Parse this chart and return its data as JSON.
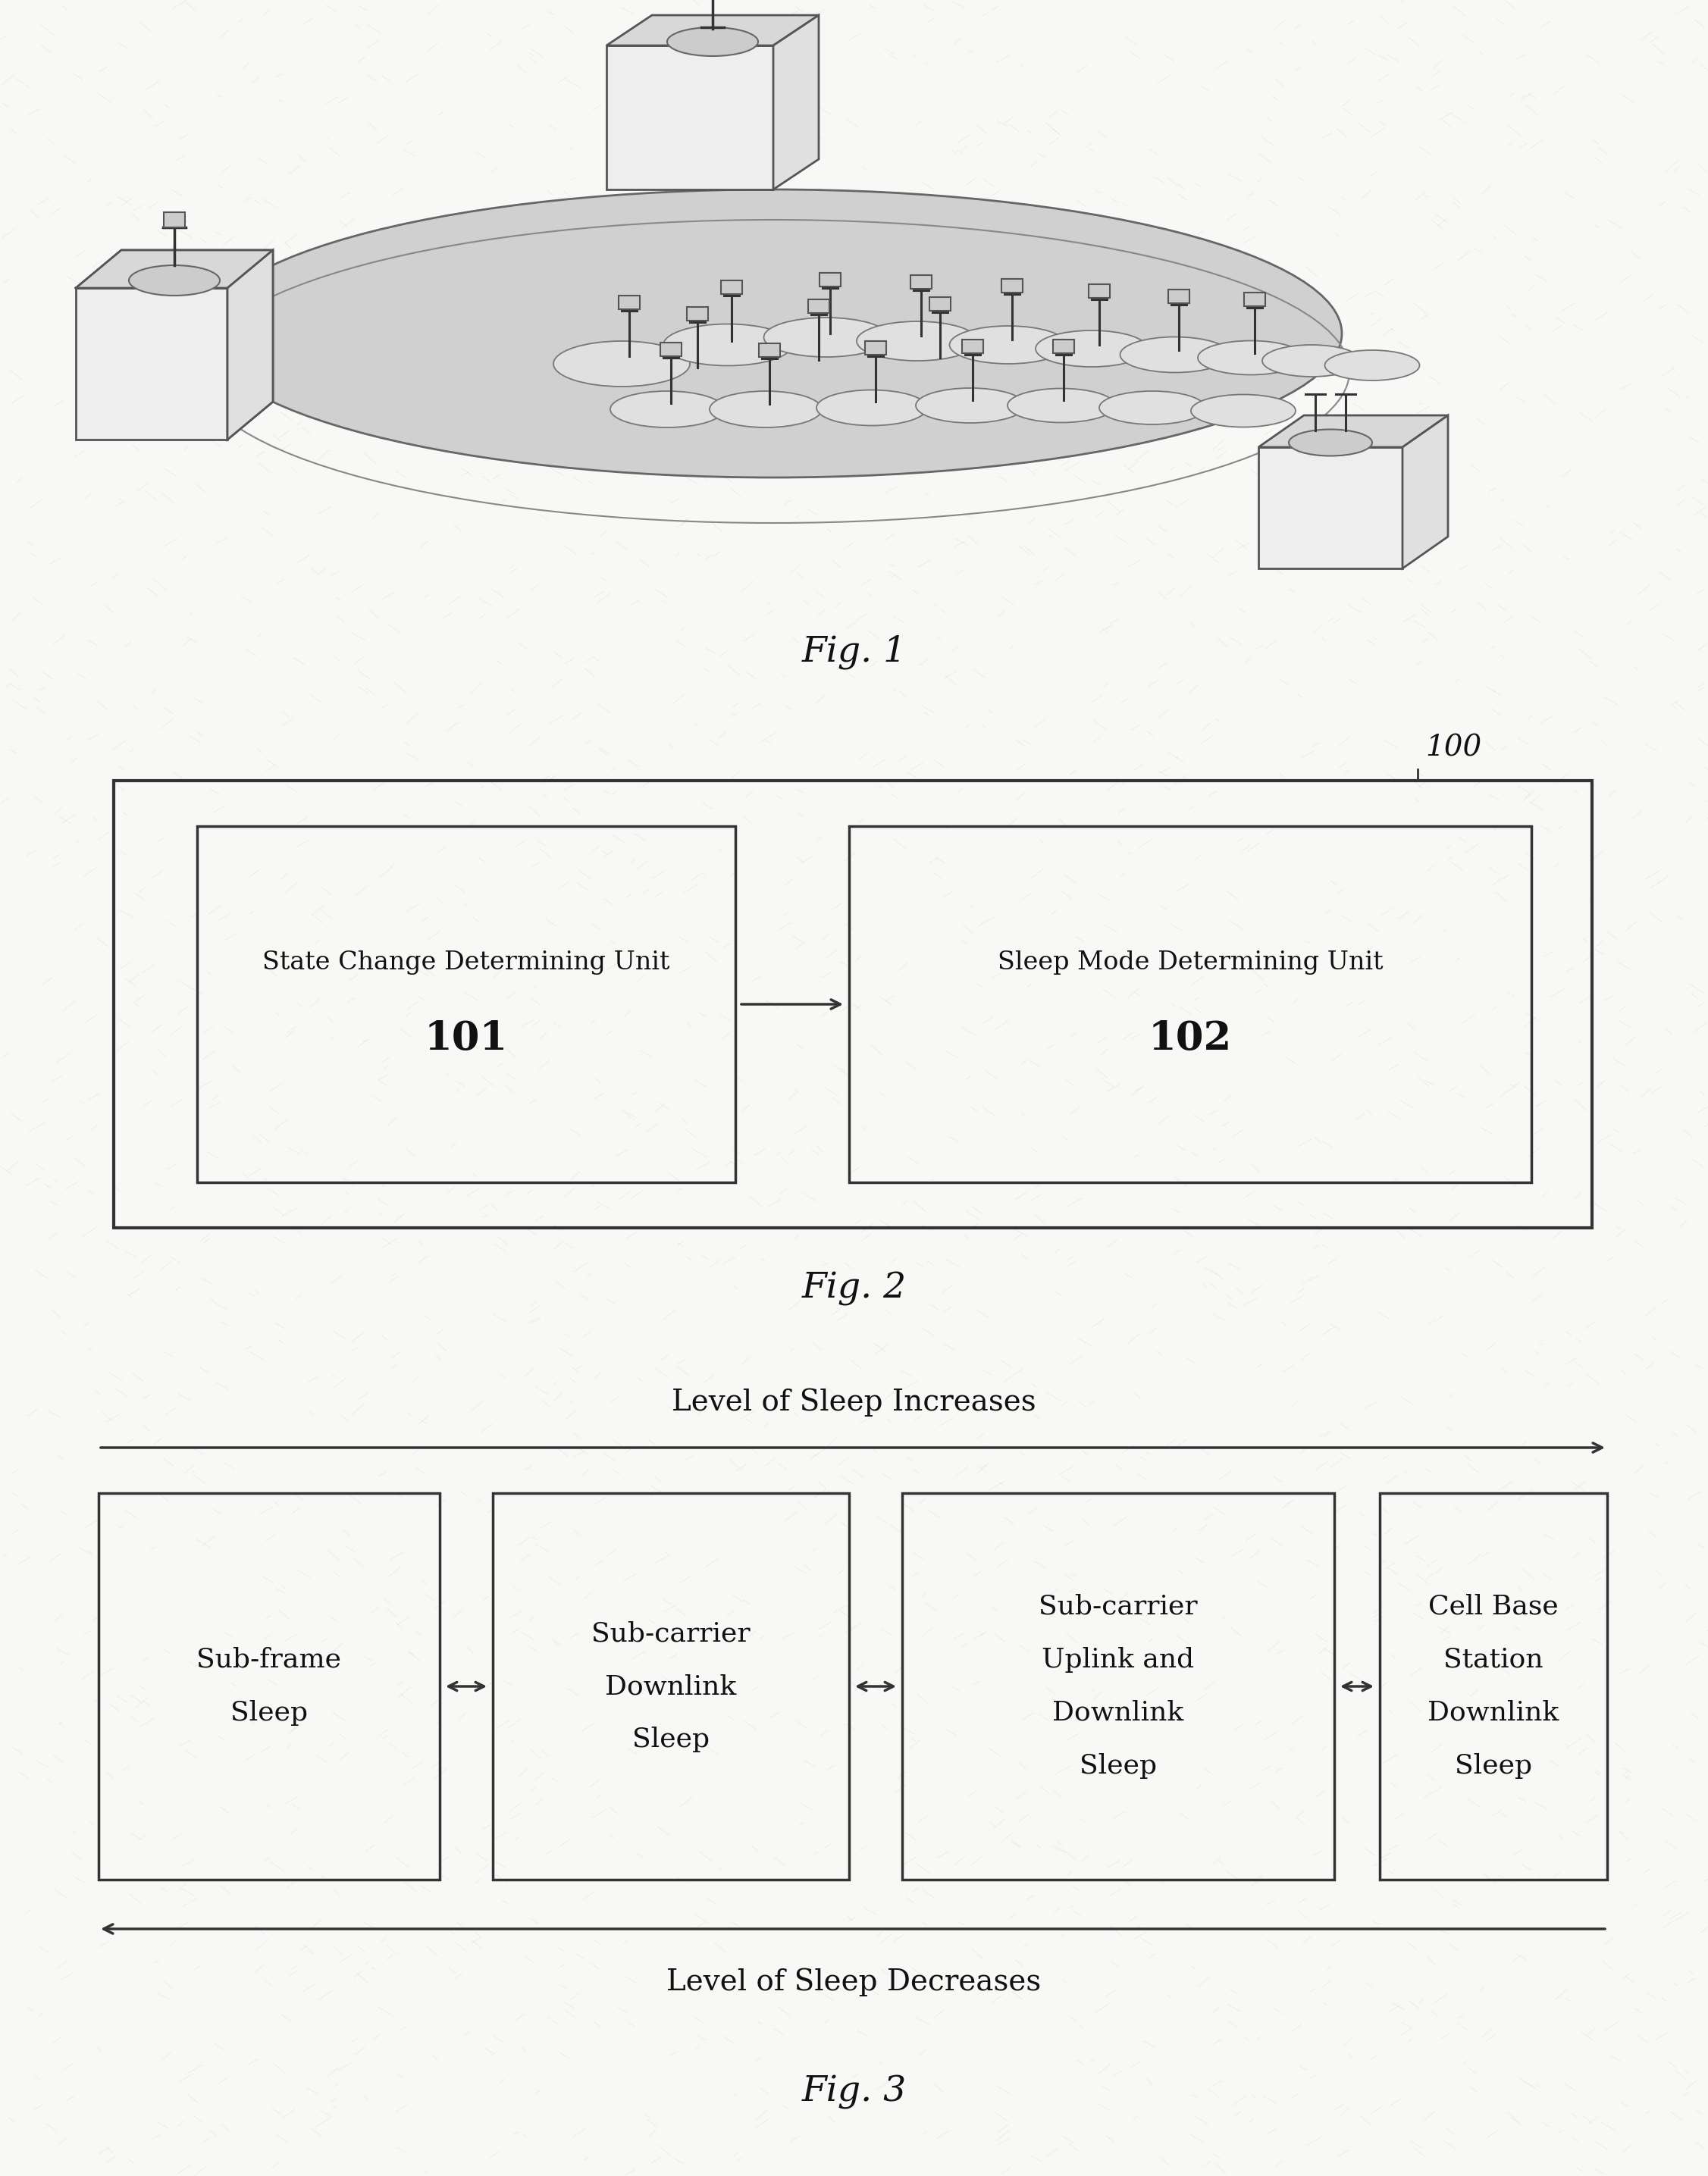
{
  "bg_color": "#f8f8f6",
  "fig1_label": "Fig. 1",
  "fig2_label": "Fig. 2",
  "fig3_label": "Fig. 3",
  "box100_label": "100",
  "box101_label": "101",
  "box102_label": "102",
  "unit101_line1": "State Change Determining Unit",
  "unit102_line1": "Sleep Mode Determining Unit",
  "sleep_increases": "Level of Sleep Increases",
  "sleep_decreases": "Level of Sleep Decreases",
  "box_sf_line1": "Sub-frame",
  "box_sf_line2": "Sleep",
  "box_scd_line1": "Sub-carrier",
  "box_scd_line2": "Downlink",
  "box_scd_line3": "Sleep",
  "box_scud_line1": "Sub-carrier",
  "box_scud_line2": "Uplink and",
  "box_scud_line3": "Downlink",
  "box_scud_line4": "Sleep",
  "box_cbs_line1": "Cell Base",
  "box_cbs_line2": "Station",
  "box_cbs_line3": "Downlink",
  "box_cbs_line4": "Sleep",
  "texture_color": "#999999",
  "texture_count": 3000,
  "texture_alpha": 0.35,
  "texture_lw": 0.25
}
